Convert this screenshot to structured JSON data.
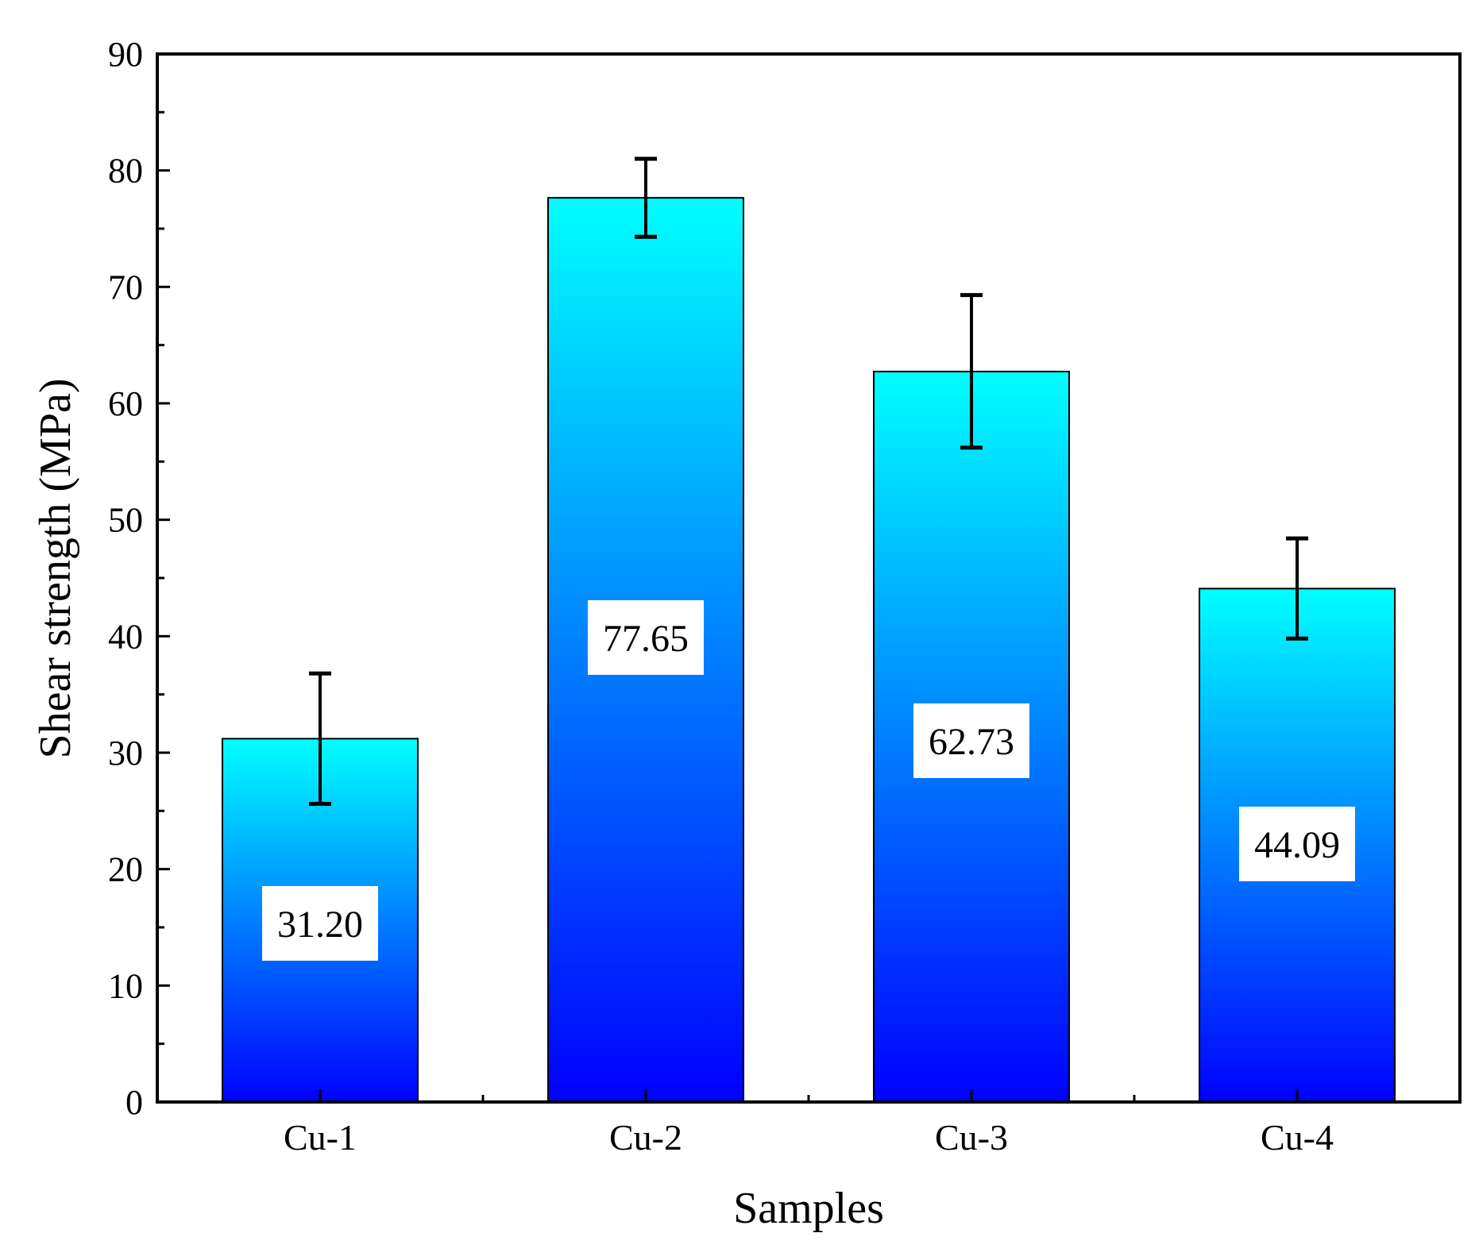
{
  "chart_data": {
    "type": "bar",
    "title": "",
    "xlabel": "Samples",
    "ylabel": "Shear strength (MPa)",
    "categories": [
      "Cu-1",
      "Cu-2",
      "Cu-3",
      "Cu-4"
    ],
    "values": [
      31.2,
      77.65,
      62.73,
      44.09
    ],
    "value_labels": [
      "31.20",
      "77.65",
      "62.73",
      "44.09"
    ],
    "error_bars": [
      {
        "upper": 36.8,
        "lower": 25.6
      },
      {
        "upper": 81.0,
        "lower": 74.3
      },
      {
        "upper": 69.3,
        "lower": 56.2
      },
      {
        "upper": 48.4,
        "lower": 39.8
      }
    ],
    "ylim": [
      0,
      90
    ],
    "yticks": [
      0,
      10,
      20,
      30,
      40,
      50,
      60,
      70,
      80,
      90
    ],
    "ytick_labels": [
      "0",
      "10",
      "20",
      "30",
      "40",
      "50",
      "60",
      "70",
      "80",
      "90"
    ],
    "grid": false,
    "legend": "none",
    "colors": {
      "bar_top": "#00ffff",
      "bar_bottom": "#0000ff",
      "axis": "#000000",
      "label_box": "#ffffff"
    }
  }
}
